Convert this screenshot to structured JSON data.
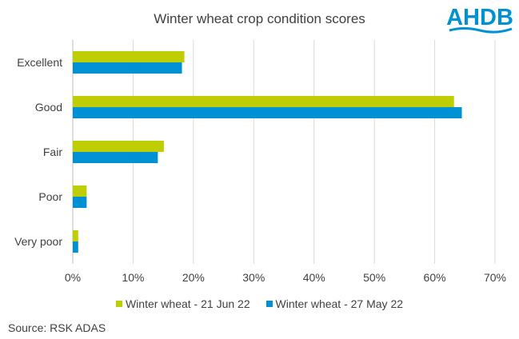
{
  "chart_data": {
    "type": "bar",
    "orientation": "horizontal",
    "title": "Winter wheat crop condition scores",
    "categories": [
      "Excellent",
      "Good",
      "Fair",
      "Poor",
      "Very poor"
    ],
    "series": [
      {
        "name": "Winter wheat - 21 Jun 22",
        "color": "#bfce00",
        "values": [
          18.5,
          63.2,
          15.1,
          2.3,
          0.9
        ]
      },
      {
        "name": "Winter wheat - 27 May 22",
        "color": "#0090d4",
        "values": [
          18.1,
          64.5,
          14.1,
          2.3,
          0.9
        ]
      }
    ],
    "xlim": [
      0,
      70
    ],
    "xticks": [
      "0%",
      "10%",
      "20%",
      "30%",
      "40%",
      "50%",
      "60%",
      "70%"
    ],
    "grid": true,
    "legend_position": "bottom"
  },
  "logo": {
    "text": "AHDB",
    "color": "#0090d4"
  },
  "source": "Source: RSK ADAS"
}
